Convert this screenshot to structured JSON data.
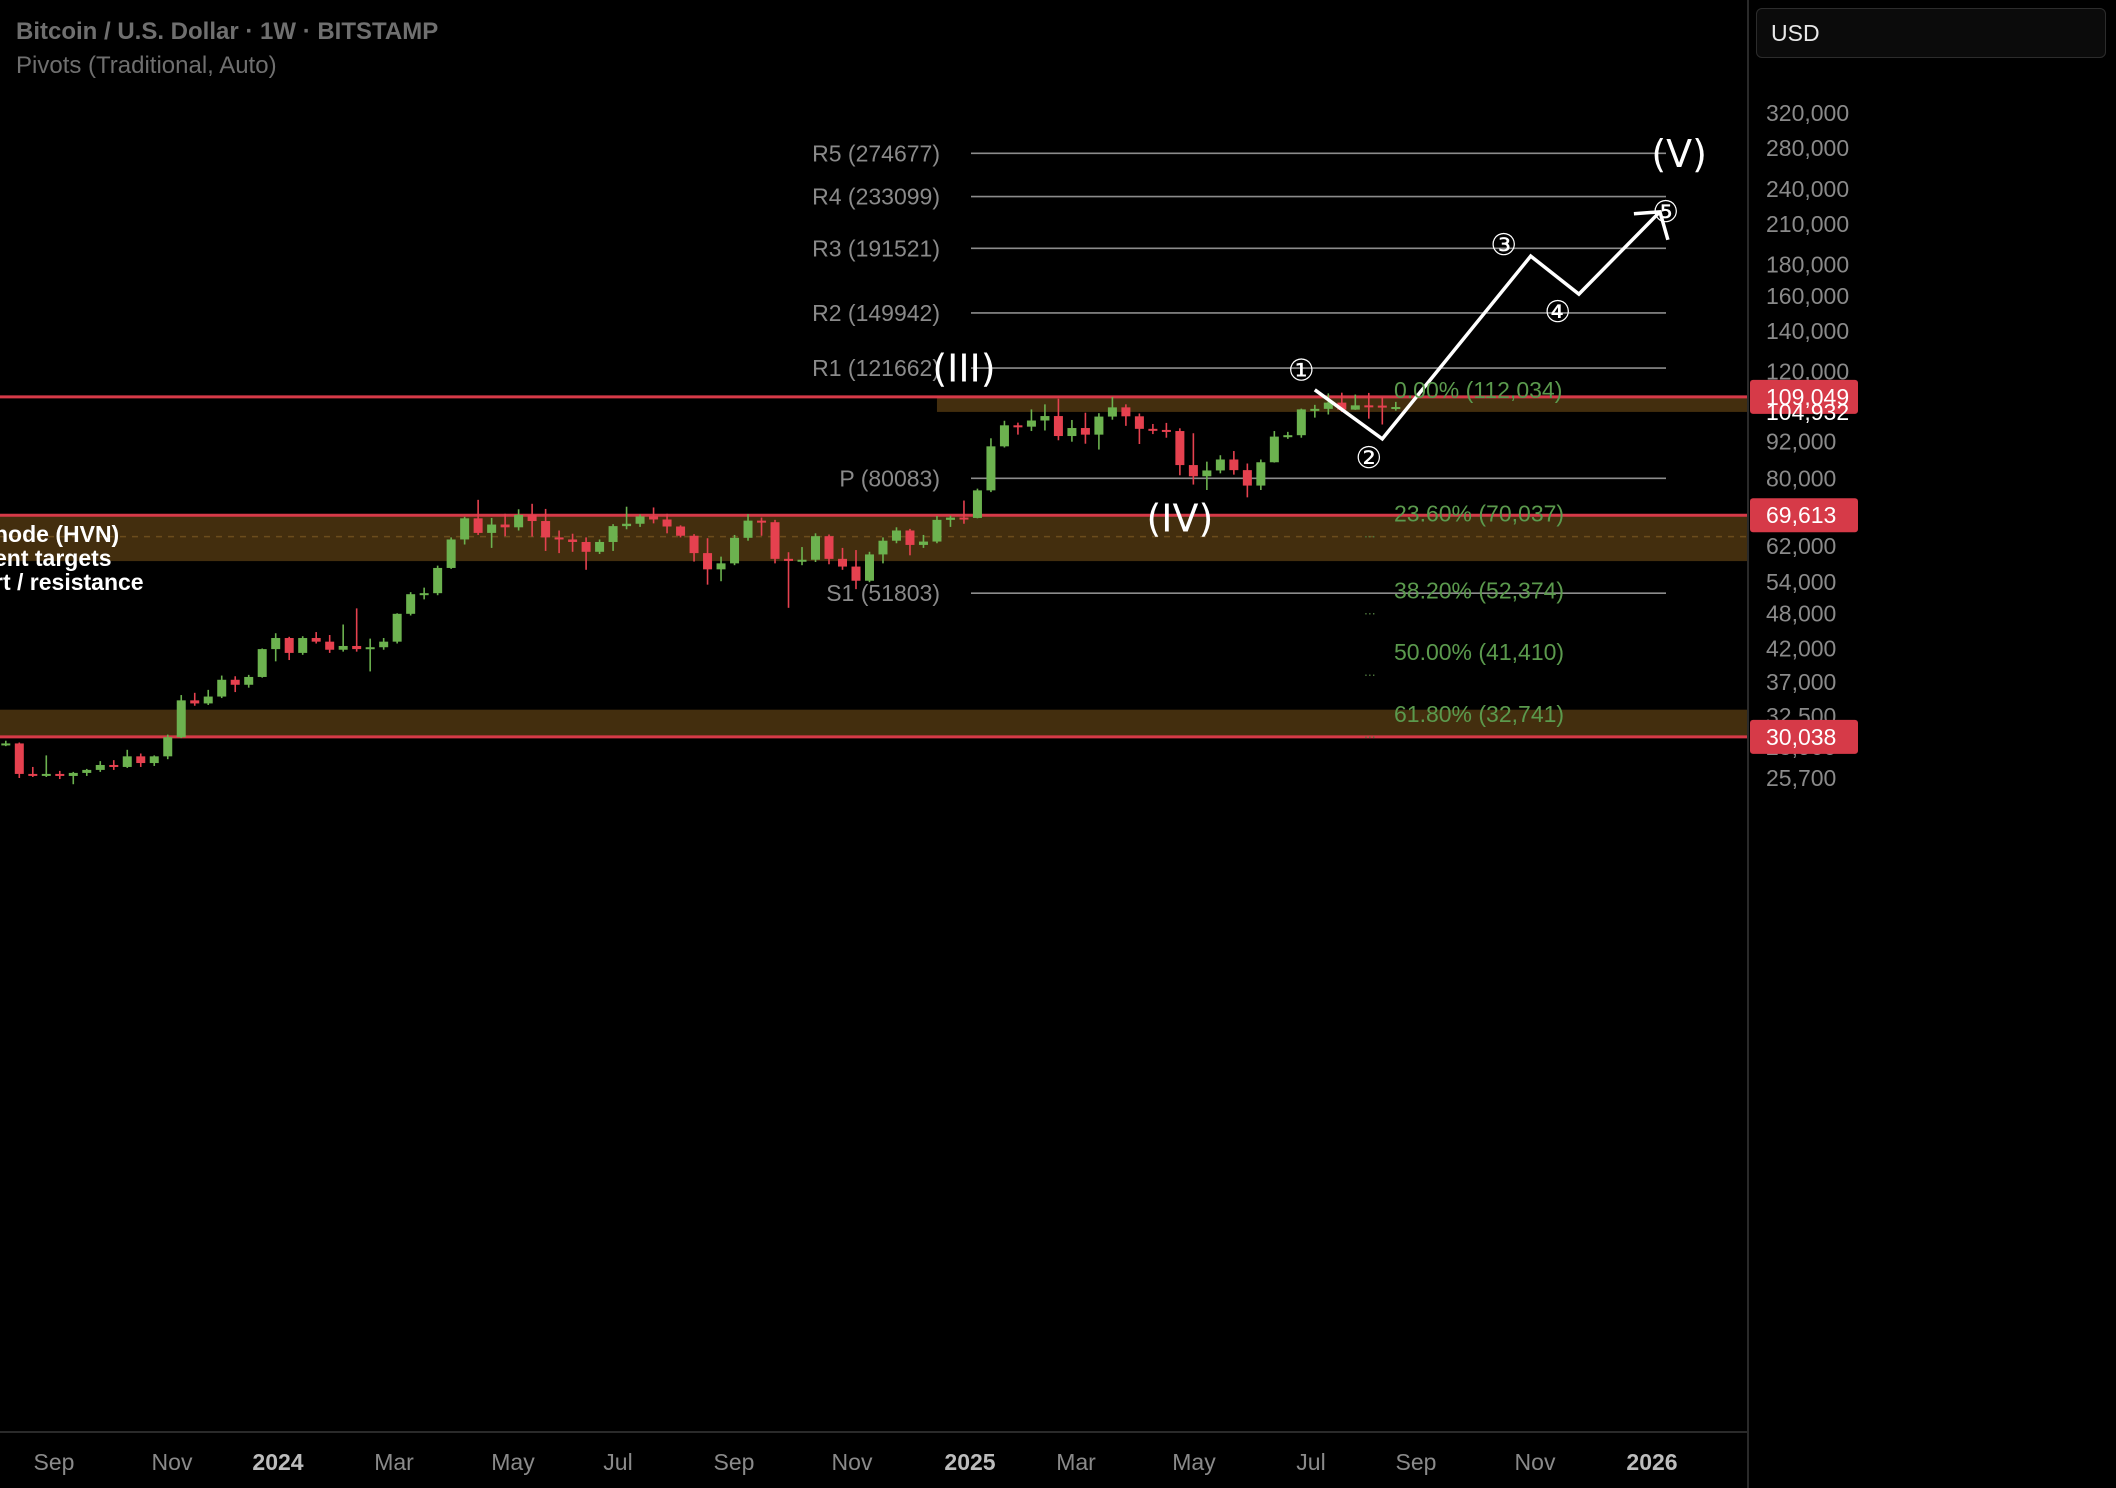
{
  "header": {
    "title": "Bitcoin / U.S. Dollar · 1W · BITSTAMP",
    "indicator": "Pivots (Traditional, Auto)"
  },
  "currency_selector": {
    "value": "USD"
  },
  "annotation_note": [
    "node (HVN)",
    "ent targets",
    "rt / resistance"
  ],
  "colors": {
    "up": "#6cb24f",
    "down": "#e5414f",
    "zone_fill": "#4a3310",
    "zone_line": "#d63a48",
    "fib_text": "#5b9a4d",
    "pivot_text": "#8a8a8a"
  },
  "chart_data": {
    "type": "candlestick",
    "title": "Bitcoin / U.S. Dollar · 1W · BITSTAMP",
    "y_scale": "log",
    "y_ticks": [
      "320,000",
      "280,000",
      "240,000",
      "210,000",
      "180,000",
      "160,000",
      "140,000",
      "120,000",
      "92,000",
      "80,000",
      "62,000",
      "54,000",
      "48,000",
      "42,000",
      "37,000",
      "32,500",
      "28,900",
      "25,700"
    ],
    "x_ticks": [
      {
        "label": "Sep",
        "bold": false
      },
      {
        "label": "Nov",
        "bold": false
      },
      {
        "label": "2024",
        "bold": true
      },
      {
        "label": "Mar",
        "bold": false
      },
      {
        "label": "May",
        "bold": false
      },
      {
        "label": "Jul",
        "bold": false
      },
      {
        "label": "Sep",
        "bold": false
      },
      {
        "label": "Nov",
        "bold": false
      },
      {
        "label": "2025",
        "bold": true
      },
      {
        "label": "Mar",
        "bold": false
      },
      {
        "label": "May",
        "bold": false
      },
      {
        "label": "Jul",
        "bold": false
      },
      {
        "label": "Sep",
        "bold": false
      },
      {
        "label": "Nov",
        "bold": false
      },
      {
        "label": "2026",
        "bold": true
      }
    ],
    "price_badges": [
      {
        "label": "109,049",
        "value": 109049,
        "style": "red"
      },
      {
        "label": "104,932",
        "value": 104932,
        "style": "plain"
      },
      {
        "label": "69,613",
        "value": 69613,
        "style": "red"
      },
      {
        "label": "30,038",
        "value": 30038,
        "style": "red"
      }
    ],
    "pivots": [
      {
        "label": "R5 (274677)",
        "value": 274677
      },
      {
        "label": "R4 (233099)",
        "value": 233099
      },
      {
        "label": "R3 (191521)",
        "value": 191521
      },
      {
        "label": "R2 (149942)",
        "value": 149942
      },
      {
        "label": "R1 (121662)",
        "value": 121662
      },
      {
        "label": "P (80083)",
        "value": 80083
      },
      {
        "label": "S1 (51803)",
        "value": 51803
      }
    ],
    "fib_levels": [
      {
        "label": "0.00% (112,034)",
        "value": 112034
      },
      {
        "label": "23.60% (70,037)",
        "value": 70037
      },
      {
        "label": "38.20% (52,374)",
        "value": 52374
      },
      {
        "label": "50.00% (41,410)",
        "value": 41410
      },
      {
        "label": "61.80% (32,741)",
        "value": 32741
      }
    ],
    "zones": [
      {
        "name": "HVN zone 1",
        "top": 109049,
        "bottom": 103000,
        "start": "2024-12-02"
      },
      {
        "name": "HVN zone 2",
        "top": 69613,
        "bottom": 58500,
        "start": "2023-07-24"
      },
      {
        "name": "HVN zone 3",
        "top": 33300,
        "bottom": 30038,
        "start": "2023-07-24"
      }
    ],
    "wave_labels": [
      {
        "label": "(III)",
        "date": "2024-12-16",
        "value": 121000
      },
      {
        "label": "(IV)",
        "date": "2025-04-07",
        "value": 68500
      },
      {
        "label": "(V)",
        "date": "2025-12-22",
        "value": 273000
      },
      {
        "label": "①",
        "date": "2025-06-09",
        "value": 120500
      },
      {
        "label": "②",
        "date": "2025-07-14",
        "value": 86500
      },
      {
        "label": "③",
        "date": "2025-09-22",
        "value": 194000
      },
      {
        "label": "④",
        "date": "2025-10-20",
        "value": 150400
      },
      {
        "label": "⑤",
        "date": "2025-12-15",
        "value": 220000
      }
    ],
    "projection_path": [
      {
        "date": "2025-06-16",
        "value": 112000
      },
      {
        "date": "2025-07-21",
        "value": 93000
      },
      {
        "date": "2025-10-06",
        "value": 186000
      },
      {
        "date": "2025-10-31",
        "value": 161000
      },
      {
        "date": "2025-12-12",
        "value": 220000
      }
    ],
    "candles_start": "2023-07-24",
    "candles": [
      [
        29300,
        29400,
        29000,
        29100
      ],
      [
        29100,
        29900,
        28900,
        29200
      ],
      [
        29200,
        29600,
        29000,
        29300
      ],
      [
        29300,
        29400,
        25700,
        26100
      ],
      [
        26100,
        26800,
        25800,
        26000
      ],
      [
        26000,
        28000,
        25800,
        26100
      ],
      [
        26100,
        26400,
        25600,
        25900
      ],
      [
        25900,
        26300,
        25100,
        26200
      ],
      [
        26200,
        26600,
        25900,
        26500
      ],
      [
        26500,
        27400,
        26300,
        27000
      ],
      [
        27000,
        27500,
        26500,
        26800
      ],
      [
        26800,
        28600,
        26700,
        27900
      ],
      [
        27900,
        28200,
        26800,
        27200
      ],
      [
        27200,
        28000,
        26900,
        27900
      ],
      [
        27900,
        30300,
        27600,
        30000
      ],
      [
        30000,
        35200,
        29900,
        34500
      ],
      [
        34500,
        35500,
        33800,
        34100
      ],
      [
        34100,
        35900,
        33900,
        35000
      ],
      [
        35000,
        37900,
        34800,
        37300
      ],
      [
        37300,
        37800,
        35600,
        36600
      ],
      [
        36600,
        38000,
        36200,
        37700
      ],
      [
        37700,
        42000,
        37600,
        41900
      ],
      [
        41900,
        44500,
        40000,
        43700
      ],
      [
        43700,
        43900,
        40200,
        41300
      ],
      [
        41300,
        44000,
        41000,
        43700
      ],
      [
        43700,
        44700,
        42800,
        43100
      ],
      [
        43100,
        44200,
        41300,
        41800
      ],
      [
        41800,
        46000,
        41500,
        42400
      ],
      [
        42400,
        48900,
        41500,
        41900
      ],
      [
        41900,
        43600,
        38500,
        42200
      ],
      [
        42200,
        43700,
        41800,
        43100
      ],
      [
        43100,
        48000,
        42800,
        47900
      ],
      [
        47900,
        52000,
        47600,
        51600
      ],
      [
        51600,
        52900,
        50600,
        51800
      ],
      [
        51800,
        57500,
        51400,
        57000
      ],
      [
        57000,
        64000,
        56800,
        63500
      ],
      [
        63500,
        69200,
        62300,
        68800
      ],
      [
        68800,
        73800,
        64600,
        65100
      ],
      [
        65100,
        68900,
        61500,
        67200
      ],
      [
        67200,
        70000,
        64300,
        66500
      ],
      [
        66500,
        71200,
        65700,
        69700
      ],
      [
        69700,
        72700,
        64200,
        68100
      ],
      [
        68100,
        71300,
        60800,
        64000
      ],
      [
        64000,
        65700,
        60300,
        63500
      ],
      [
        63500,
        64900,
        60600,
        62900
      ],
      [
        62900,
        64000,
        56600,
        60600
      ],
      [
        60600,
        63500,
        60100,
        62900
      ],
      [
        62900,
        67300,
        60800,
        66800
      ],
      [
        66800,
        71900,
        66000,
        67400
      ],
      [
        67400,
        69800,
        66600,
        69300
      ],
      [
        69300,
        71700,
        67500,
        68500
      ],
      [
        68500,
        70000,
        65000,
        66700
      ],
      [
        66700,
        67000,
        64000,
        64400
      ],
      [
        64400,
        64800,
        58400,
        60300
      ],
      [
        60300,
        63800,
        53500,
        56700
      ],
      [
        56700,
        59500,
        54200,
        58000
      ],
      [
        58000,
        64600,
        57600,
        63900
      ],
      [
        63900,
        69900,
        63200,
        68200
      ],
      [
        68200,
        69000,
        64400,
        67800
      ],
      [
        67800,
        68400,
        58000,
        59000
      ],
      [
        59000,
        60500,
        49000,
        58700
      ],
      [
        58700,
        61700,
        57600,
        58800
      ],
      [
        58800,
        65000,
        58300,
        64300
      ],
      [
        64300,
        64700,
        57800,
        59000
      ],
      [
        59000,
        61500,
        56600,
        57300
      ],
      [
        57300,
        61000,
        52600,
        54300
      ],
      [
        54300,
        60600,
        54000,
        60000
      ],
      [
        60000,
        64000,
        58000,
        63200
      ],
      [
        63200,
        66500,
        62600,
        65700
      ],
      [
        65700,
        66100,
        59800,
        62200
      ],
      [
        62200,
        64600,
        61500,
        63000
      ],
      [
        63000,
        69400,
        62600,
        68400
      ],
      [
        68400,
        69500,
        66600,
        69000
      ],
      [
        69000,
        73600,
        67400,
        68900
      ],
      [
        68900,
        77000,
        68800,
        76500
      ],
      [
        76500,
        93200,
        76000,
        90400
      ],
      [
        90400,
        99600,
        90000,
        97900
      ],
      [
        97900,
        98900,
        94500,
        97400
      ],
      [
        97400,
        104000,
        95800,
        99700
      ],
      [
        99700,
        106000,
        96000,
        101400
      ],
      [
        101400,
        108300,
        92500,
        94000
      ],
      [
        94000,
        99900,
        92000,
        96900
      ],
      [
        96900,
        102700,
        91300,
        94500
      ],
      [
        94500,
        102500,
        89300,
        101200
      ],
      [
        101200,
        109000,
        100000,
        104800
      ],
      [
        104800,
        106000,
        97700,
        101300
      ],
      [
        101300,
        102400,
        91200,
        96600
      ],
      [
        96600,
        98400,
        94700,
        96200
      ],
      [
        96200,
        98800,
        93400,
        95800
      ],
      [
        95800,
        96800,
        81000,
        84200
      ],
      [
        84200,
        95000,
        78200,
        80700
      ],
      [
        80700,
        85300,
        76600,
        82500
      ],
      [
        82500,
        87400,
        81600,
        86000
      ],
      [
        86000,
        88800,
        81200,
        82600
      ],
      [
        82600,
        84700,
        74500,
        77900
      ],
      [
        77900,
        86000,
        76600,
        85100
      ],
      [
        85100,
        95800,
        85000,
        93800
      ],
      [
        93800,
        95500,
        93000,
        94300
      ],
      [
        94300,
        104300,
        93400,
        104000
      ],
      [
        104000,
        105800,
        100800,
        104200
      ],
      [
        104200,
        110500,
        102000,
        106700
      ],
      [
        106700,
        110800,
        103000,
        103900
      ],
      [
        103900,
        110000,
        103800,
        105600
      ],
      [
        105600,
        110700,
        100400,
        105500
      ],
      [
        105500,
        108900,
        98200,
        104900
      ],
      [
        104900,
        107000,
        103500,
        104932
      ]
    ]
  }
}
